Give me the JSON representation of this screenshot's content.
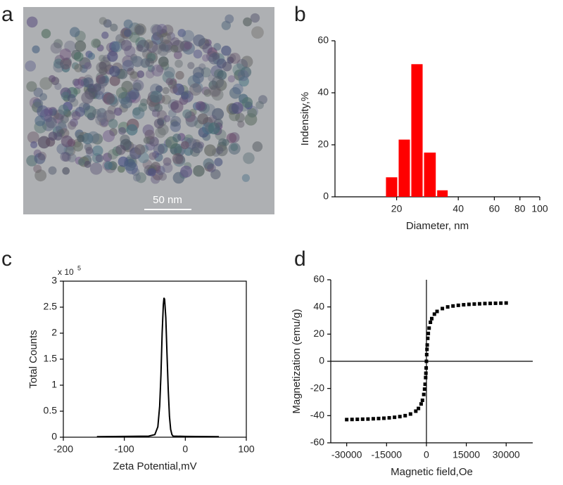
{
  "chart_data": [
    {
      "type": "image",
      "label": "a",
      "scale_bar": "50 nm"
    },
    {
      "type": "histogram",
      "label": "b",
      "x_label": "Diameter, nm",
      "y_label": "Indensity,%",
      "bins": [
        17.6,
        20.3,
        23.4,
        27.0,
        31.3,
        35.8
      ],
      "values": [
        7.5,
        22,
        51,
        17,
        2.5
      ],
      "color": "#ff0000",
      "xlim": [
        10,
        100
      ],
      "xscale": "log",
      "xticks": [
        20,
        40,
        60,
        80,
        100
      ],
      "ylim": [
        0,
        60
      ],
      "yticks": [
        0,
        20,
        40,
        60
      ]
    },
    {
      "type": "line",
      "label": "c",
      "x_label": "Zeta Potential,mV",
      "y_label": "Total Counts",
      "y_multiplier": "x 10",
      "y_multiplier_exp": "5",
      "frame": true,
      "color": "#000000",
      "x": [
        -145,
        -100,
        -60,
        -50,
        -45,
        -42,
        -40,
        -38,
        -36,
        -35,
        -34,
        -32,
        -30,
        -28,
        -26,
        -24,
        -22,
        -20,
        0,
        55
      ],
      "values": [
        1000,
        1500,
        2000,
        5000,
        20000,
        60000,
        120000,
        200000,
        255000,
        268000,
        265000,
        230000,
        160000,
        90000,
        40000,
        15000,
        5000,
        2000,
        1500,
        1000
      ],
      "xlim": [
        -200,
        100
      ],
      "xticks": [
        -200,
        -100,
        0,
        100
      ],
      "ylim": [
        0,
        300000
      ],
      "yticks": [
        0,
        {
          "value": 50000,
          "label": "0.5"
        },
        {
          "value": 100000,
          "label": "1"
        },
        {
          "value": 150000,
          "label": "1.5"
        },
        {
          "value": 200000,
          "label": "2"
        },
        {
          "value": 250000,
          "label": "2.5"
        },
        {
          "value": 300000,
          "label": "3"
        }
      ]
    },
    {
      "type": "scatter",
      "label": "d",
      "x_label": "Magnetic field,Oe",
      "y_label": "Magnetization (emu/g)",
      "zero_lines": true,
      "marker": "square",
      "color": "#000000",
      "x": [
        -30000,
        -28000,
        -26000,
        -24000,
        -22000,
        -20000,
        -18000,
        -16000,
        -14000,
        -12000,
        -10000,
        -8000,
        -6000,
        -4000,
        -3000,
        -2000,
        -1500,
        -1000,
        -700,
        -500,
        -300,
        -200,
        -100,
        0,
        100,
        200,
        300,
        500,
        700,
        1000,
        1500,
        2000,
        3000,
        4000,
        6000,
        8000,
        10000,
        12000,
        14000,
        16000,
        18000,
        20000,
        22000,
        24000,
        26000,
        28000,
        30000
      ],
      "values": [
        -42.9,
        -42.8,
        -42.7,
        -42.6,
        -42.5,
        -42.3,
        -42.1,
        -41.9,
        -41.6,
        -41.2,
        -40.7,
        -40.0,
        -38.8,
        -36.7,
        -34.7,
        -31.4,
        -28.7,
        -24.4,
        -20.5,
        -16.9,
        -12.0,
        -8.8,
        -4.9,
        0,
        4.9,
        8.8,
        12.0,
        16.9,
        20.5,
        24.4,
        28.7,
        31.4,
        34.7,
        36.7,
        38.8,
        40.0,
        40.7,
        41.2,
        41.6,
        41.9,
        42.1,
        42.3,
        42.5,
        42.6,
        42.7,
        42.8,
        42.9
      ],
      "xlim": [
        -36000,
        40000
      ],
      "xticks": [
        -30000,
        -15000,
        0,
        15000,
        30000
      ],
      "ylim": [
        -60,
        60
      ],
      "yticks": [
        -60,
        -40,
        -20,
        0,
        20,
        40,
        60
      ]
    }
  ]
}
